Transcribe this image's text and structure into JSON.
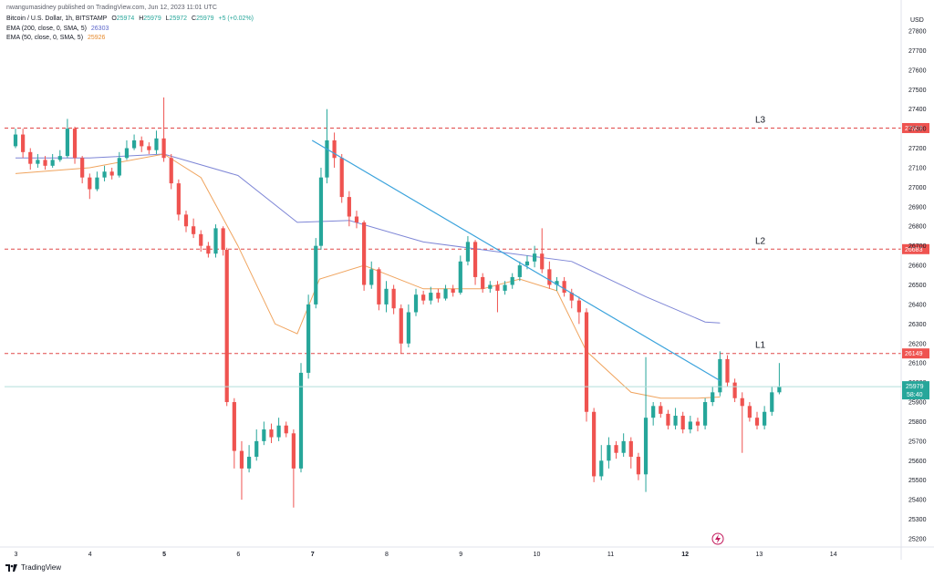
{
  "header": {
    "published": "nwangumasidney published on TradingView.com, Jun 12, 2023 11:01 UTC",
    "symbol": "Bitcoin / U.S. Dollar, 1h, BITSTAMP",
    "ohlc": {
      "o_label": "O",
      "o": "25974",
      "h_label": "H",
      "h": "25979",
      "l_label": "L",
      "l": "25972",
      "c_label": "C",
      "c": "25979",
      "change": "+5 (+0.02%)"
    },
    "ema200_label": "EMA (200, close, 0, SMA, 5)",
    "ema200_value": "26303",
    "ema50_label": "EMA (50, close, 0, SMA, 5)",
    "ema50_value": "25926"
  },
  "footer": {
    "brand": "TradingView"
  },
  "colors": {
    "up": "#26a69a",
    "down": "#ef5350",
    "ema200": "#7e86d6",
    "ema50": "#f0a45e",
    "trendline": "#3ba3dc",
    "level_line": "#e04848",
    "price_label_bg": "#26a69a",
    "level_label_bg": "#ef5350"
  },
  "chart_data": {
    "type": "candlestick",
    "currency": "USD",
    "yticks": [
      25200,
      25300,
      25400,
      25500,
      25600,
      25700,
      25800,
      25900,
      26000,
      26100,
      26200,
      26300,
      26400,
      26500,
      26600,
      26700,
      26800,
      26900,
      27000,
      27100,
      27200,
      27300,
      27400,
      27500,
      27600,
      27700,
      27800
    ],
    "ylim": [
      25170,
      27870
    ],
    "xticks": [
      "3",
      "4",
      "5",
      "6",
      "7",
      "8",
      "9",
      "10",
      "11",
      "12",
      "13",
      "14"
    ],
    "xlim": [
      0,
      12.25
    ],
    "current_price": "25979",
    "countdown": "58:40",
    "levels": [
      {
        "name": "L3",
        "price": 27303,
        "label": "27303"
      },
      {
        "name": "L2",
        "price": 26683,
        "label": "26683"
      },
      {
        "name": "L1",
        "price": 26149,
        "label": "26149"
      }
    ],
    "trendline": [
      {
        "x": 4.0,
        "price": 27240
      },
      {
        "x": 9.5,
        "price": 26010
      }
    ],
    "ema200": [
      [
        0,
        27150
      ],
      [
        1,
        27150
      ],
      [
        2,
        27170
      ],
      [
        3,
        27060
      ],
      [
        3.8,
        26820
      ],
      [
        4.5,
        26830
      ],
      [
        5.5,
        26720
      ],
      [
        6.5,
        26670
      ],
      [
        7.5,
        26620
      ],
      [
        8.5,
        26440
      ],
      [
        9.3,
        26310
      ],
      [
        9.5,
        26305
      ]
    ],
    "ema50": [
      [
        0,
        27070
      ],
      [
        1,
        27100
      ],
      [
        2,
        27170
      ],
      [
        2.5,
        27050
      ],
      [
        3,
        26700
      ],
      [
        3.5,
        26300
      ],
      [
        3.8,
        26250
      ],
      [
        4.1,
        26530
      ],
      [
        4.7,
        26600
      ],
      [
        5.5,
        26480
      ],
      [
        6.3,
        26480
      ],
      [
        6.8,
        26530
      ],
      [
        7.3,
        26470
      ],
      [
        7.7,
        26160
      ],
      [
        8.3,
        25950
      ],
      [
        8.7,
        25920
      ],
      [
        9.2,
        25920
      ],
      [
        9.5,
        25926
      ]
    ],
    "series": [
      {
        "x": 0.0,
        "open": 27210,
        "close": 27270,
        "high": 27300,
        "low": 27200
      },
      {
        "x": 0.1,
        "open": 27270,
        "close": 27180,
        "high": 27300,
        "low": 27150
      },
      {
        "x": 0.2,
        "open": 27180,
        "close": 27120,
        "high": 27200,
        "low": 27090
      },
      {
        "x": 0.3,
        "open": 27120,
        "close": 27140,
        "high": 27170,
        "low": 27100
      },
      {
        "x": 0.4,
        "open": 27140,
        "close": 27110,
        "high": 27160,
        "low": 27090
      },
      {
        "x": 0.5,
        "open": 27110,
        "close": 27140,
        "high": 27170,
        "low": 27100
      },
      {
        "x": 0.6,
        "open": 27140,
        "close": 27160,
        "high": 27190,
        "low": 27130
      },
      {
        "x": 0.7,
        "open": 27160,
        "close": 27300,
        "high": 27350,
        "low": 27150
      },
      {
        "x": 0.8,
        "open": 27300,
        "close": 27150,
        "high": 27310,
        "low": 27120
      },
      {
        "x": 0.9,
        "open": 27150,
        "close": 27050,
        "high": 27160,
        "low": 27020
      },
      {
        "x": 1.0,
        "open": 27050,
        "close": 26990,
        "high": 27070,
        "low": 26940
      },
      {
        "x": 1.1,
        "open": 26990,
        "close": 27050,
        "high": 27080,
        "low": 26980
      },
      {
        "x": 1.2,
        "open": 27050,
        "close": 27080,
        "high": 27110,
        "low": 27030
      },
      {
        "x": 1.3,
        "open": 27080,
        "close": 27060,
        "high": 27100,
        "low": 27040
      },
      {
        "x": 1.4,
        "open": 27060,
        "close": 27150,
        "high": 27180,
        "low": 27050
      },
      {
        "x": 1.5,
        "open": 27150,
        "close": 27200,
        "high": 27240,
        "low": 27140
      },
      {
        "x": 1.6,
        "open": 27200,
        "close": 27240,
        "high": 27270,
        "low": 27190
      },
      {
        "x": 1.7,
        "open": 27240,
        "close": 27210,
        "high": 27260,
        "low": 27180
      },
      {
        "x": 1.8,
        "open": 27210,
        "close": 27190,
        "high": 27230,
        "low": 27170
      },
      {
        "x": 1.9,
        "open": 27190,
        "close": 27250,
        "high": 27290,
        "low": 27170
      },
      {
        "x": 2.0,
        "open": 27250,
        "close": 27150,
        "high": 27460,
        "low": 27130
      },
      {
        "x": 2.1,
        "open": 27150,
        "close": 27020,
        "high": 27170,
        "low": 26990
      },
      {
        "x": 2.2,
        "open": 27020,
        "close": 26860,
        "high": 27040,
        "low": 26830
      },
      {
        "x": 2.3,
        "open": 26860,
        "close": 26800,
        "high": 26880,
        "low": 26770
      },
      {
        "x": 2.4,
        "open": 26800,
        "close": 26760,
        "high": 26840,
        "low": 26740
      },
      {
        "x": 2.5,
        "open": 26760,
        "close": 26700,
        "high": 26780,
        "low": 26670
      },
      {
        "x": 2.6,
        "open": 26700,
        "close": 26660,
        "high": 26720,
        "low": 26640
      },
      {
        "x": 2.7,
        "open": 26660,
        "close": 26790,
        "high": 26810,
        "low": 26640
      },
      {
        "x": 2.8,
        "open": 26790,
        "close": 26680,
        "high": 26800,
        "low": 26650
      },
      {
        "x": 2.85,
        "open": 26680,
        "close": 25900,
        "high": 26690,
        "low": 25880
      },
      {
        "x": 2.95,
        "open": 25900,
        "close": 25650,
        "high": 25920,
        "low": 25560
      },
      {
        "x": 3.05,
        "open": 25650,
        "close": 25560,
        "high": 25700,
        "low": 25400
      },
      {
        "x": 3.15,
        "open": 25560,
        "close": 25620,
        "high": 25680,
        "low": 25540
      },
      {
        "x": 3.25,
        "open": 25620,
        "close": 25700,
        "high": 25760,
        "low": 25600
      },
      {
        "x": 3.35,
        "open": 25700,
        "close": 25760,
        "high": 25800,
        "low": 25680
      },
      {
        "x": 3.45,
        "open": 25760,
        "close": 25720,
        "high": 25790,
        "low": 25690
      },
      {
        "x": 3.55,
        "open": 25720,
        "close": 25780,
        "high": 25820,
        "low": 25700
      },
      {
        "x": 3.65,
        "open": 25780,
        "close": 25740,
        "high": 25800,
        "low": 25720
      },
      {
        "x": 3.75,
        "open": 25740,
        "close": 25560,
        "high": 25760,
        "low": 25360
      },
      {
        "x": 3.85,
        "open": 25560,
        "close": 26050,
        "high": 26100,
        "low": 25540
      },
      {
        "x": 3.95,
        "open": 26050,
        "close": 26400,
        "high": 26450,
        "low": 26020
      },
      {
        "x": 4.05,
        "open": 26400,
        "close": 26700,
        "high": 26740,
        "low": 26380
      },
      {
        "x": 4.12,
        "open": 26700,
        "close": 27050,
        "high": 27100,
        "low": 26680
      },
      {
        "x": 4.2,
        "open": 27050,
        "close": 27240,
        "high": 27400,
        "low": 27020
      },
      {
        "x": 4.3,
        "open": 27240,
        "close": 27150,
        "high": 27280,
        "low": 27100
      },
      {
        "x": 4.4,
        "open": 27150,
        "close": 26950,
        "high": 27170,
        "low": 26920
      },
      {
        "x": 4.5,
        "open": 26950,
        "close": 26850,
        "high": 26980,
        "low": 26800
      },
      {
        "x": 4.6,
        "open": 26850,
        "close": 26820,
        "high": 26880,
        "low": 26790
      },
      {
        "x": 4.7,
        "open": 26820,
        "close": 26500,
        "high": 26830,
        "low": 26470
      },
      {
        "x": 4.8,
        "open": 26500,
        "close": 26580,
        "high": 26620,
        "low": 26480
      },
      {
        "x": 4.9,
        "open": 26580,
        "close": 26400,
        "high": 26590,
        "low": 26370
      },
      {
        "x": 5.0,
        "open": 26400,
        "close": 26480,
        "high": 26520,
        "low": 26360
      },
      {
        "x": 5.1,
        "open": 26480,
        "close": 26380,
        "high": 26500,
        "low": 26350
      },
      {
        "x": 5.2,
        "open": 26380,
        "close": 26200,
        "high": 26400,
        "low": 26150
      },
      {
        "x": 5.3,
        "open": 26200,
        "close": 26360,
        "high": 26400,
        "low": 26180
      },
      {
        "x": 5.4,
        "open": 26360,
        "close": 26450,
        "high": 26480,
        "low": 26340
      },
      {
        "x": 5.5,
        "open": 26450,
        "close": 26420,
        "high": 26470,
        "low": 26400
      },
      {
        "x": 5.6,
        "open": 26420,
        "close": 26460,
        "high": 26490,
        "low": 26400
      },
      {
        "x": 5.7,
        "open": 26460,
        "close": 26430,
        "high": 26480,
        "low": 26410
      },
      {
        "x": 5.8,
        "open": 26430,
        "close": 26480,
        "high": 26500,
        "low": 26420
      },
      {
        "x": 5.9,
        "open": 26480,
        "close": 26460,
        "high": 26500,
        "low": 26440
      },
      {
        "x": 6.0,
        "open": 26460,
        "close": 26620,
        "high": 26650,
        "low": 26450
      },
      {
        "x": 6.1,
        "open": 26620,
        "close": 26720,
        "high": 26750,
        "low": 26600
      },
      {
        "x": 6.2,
        "open": 26720,
        "close": 26540,
        "high": 26730,
        "low": 26500
      },
      {
        "x": 6.3,
        "open": 26540,
        "close": 26480,
        "high": 26560,
        "low": 26460
      },
      {
        "x": 6.4,
        "open": 26480,
        "close": 26500,
        "high": 26520,
        "low": 26460
      },
      {
        "x": 6.5,
        "open": 26500,
        "close": 26470,
        "high": 26520,
        "low": 26360
      },
      {
        "x": 6.6,
        "open": 26470,
        "close": 26500,
        "high": 26520,
        "low": 26450
      },
      {
        "x": 6.7,
        "open": 26500,
        "close": 26540,
        "high": 26560,
        "low": 26480
      },
      {
        "x": 6.8,
        "open": 26540,
        "close": 26600,
        "high": 26620,
        "low": 26520
      },
      {
        "x": 6.9,
        "open": 26600,
        "close": 26620,
        "high": 26650,
        "low": 26580
      },
      {
        "x": 7.0,
        "open": 26620,
        "close": 26660,
        "high": 26700,
        "low": 26590
      },
      {
        "x": 7.1,
        "open": 26660,
        "close": 26580,
        "high": 26790,
        "low": 26560
      },
      {
        "x": 7.2,
        "open": 26580,
        "close": 26500,
        "high": 26620,
        "low": 26480
      },
      {
        "x": 7.3,
        "open": 26500,
        "close": 26520,
        "high": 26540,
        "low": 26470
      },
      {
        "x": 7.4,
        "open": 26520,
        "close": 26460,
        "high": 26540,
        "low": 26440
      },
      {
        "x": 7.5,
        "open": 26460,
        "close": 26420,
        "high": 26480,
        "low": 26380
      },
      {
        "x": 7.6,
        "open": 26420,
        "close": 26360,
        "high": 26440,
        "low": 26300
      },
      {
        "x": 7.7,
        "open": 26360,
        "close": 25850,
        "high": 26380,
        "low": 25800
      },
      {
        "x": 7.8,
        "open": 25850,
        "close": 25520,
        "high": 25870,
        "low": 25490
      },
      {
        "x": 7.9,
        "open": 25520,
        "close": 25600,
        "high": 25680,
        "low": 25500
      },
      {
        "x": 8.0,
        "open": 25600,
        "close": 25680,
        "high": 25720,
        "low": 25560
      },
      {
        "x": 8.1,
        "open": 25680,
        "close": 25640,
        "high": 25700,
        "low": 25610
      },
      {
        "x": 8.2,
        "open": 25640,
        "close": 25700,
        "high": 25740,
        "low": 25620
      },
      {
        "x": 8.3,
        "open": 25700,
        "close": 25620,
        "high": 25720,
        "low": 25560
      },
      {
        "x": 8.4,
        "open": 25620,
        "close": 25530,
        "high": 25640,
        "low": 25500
      },
      {
        "x": 8.5,
        "open": 25530,
        "close": 25820,
        "high": 26130,
        "low": 25440
      },
      {
        "x": 8.6,
        "open": 25820,
        "close": 25880,
        "high": 25900,
        "low": 25780
      },
      {
        "x": 8.7,
        "open": 25880,
        "close": 25840,
        "high": 25900,
        "low": 25820
      },
      {
        "x": 8.8,
        "open": 25840,
        "close": 25780,
        "high": 25860,
        "low": 25760
      },
      {
        "x": 8.9,
        "open": 25780,
        "close": 25830,
        "high": 25870,
        "low": 25760
      },
      {
        "x": 9.0,
        "open": 25830,
        "close": 25760,
        "high": 25850,
        "low": 25740
      },
      {
        "x": 9.1,
        "open": 25760,
        "close": 25800,
        "high": 25830,
        "low": 25740
      },
      {
        "x": 9.2,
        "open": 25800,
        "close": 25780,
        "high": 25820,
        "low": 25750
      },
      {
        "x": 9.3,
        "open": 25780,
        "close": 25900,
        "high": 25920,
        "low": 25760
      },
      {
        "x": 9.4,
        "open": 25900,
        "close": 25950,
        "high": 25980,
        "low": 25880
      },
      {
        "x": 9.5,
        "open": 25950,
        "close": 26120,
        "high": 26160,
        "low": 25930
      },
      {
        "x": 9.6,
        "open": 26120,
        "close": 26000,
        "high": 26140,
        "low": 25980
      },
      {
        "x": 9.7,
        "open": 26000,
        "close": 25920,
        "high": 26020,
        "low": 25900
      },
      {
        "x": 9.8,
        "open": 25920,
        "close": 25880,
        "high": 25950,
        "low": 25640
      },
      {
        "x": 9.9,
        "open": 25880,
        "close": 25820,
        "high": 25900,
        "low": 25800
      },
      {
        "x": 10.0,
        "open": 25820,
        "close": 25780,
        "high": 25850,
        "low": 25760
      },
      {
        "x": 10.1,
        "open": 25780,
        "close": 25850,
        "high": 25880,
        "low": 25760
      },
      {
        "x": 10.2,
        "open": 25850,
        "close": 25950,
        "high": 25980,
        "low": 25830
      },
      {
        "x": 10.3,
        "open": 25950,
        "close": 25979,
        "high": 26100,
        "low": 25940
      }
    ]
  }
}
